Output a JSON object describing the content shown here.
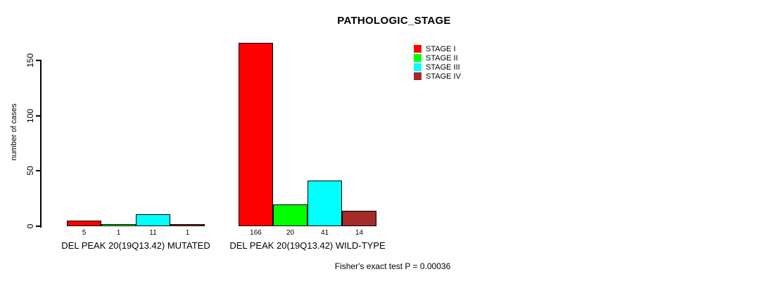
{
  "title": "PATHOLOGIC_STAGE",
  "footer": "Fisher's exact test P = 0.00036",
  "chart_data": {
    "type": "bar",
    "title": "PATHOLOGIC_STAGE",
    "xlabel": "",
    "ylabel": "number of cases",
    "categories": [
      "DEL PEAK 20(19Q13.42) MUTATED",
      "DEL PEAK 20(19Q13.42) WILD-TYPE"
    ],
    "series": [
      {
        "name": "STAGE I",
        "color": "#ff0000",
        "values": [
          5,
          166
        ]
      },
      {
        "name": "STAGE II",
        "color": "#00ff00",
        "values": [
          1,
          20
        ]
      },
      {
        "name": "STAGE III",
        "color": "#00ffff",
        "values": [
          11,
          41
        ]
      },
      {
        "name": "STAGE IV",
        "color": "#a52a2a",
        "values": [
          1,
          14
        ]
      }
    ],
    "bar_value_labels": [
      [
        "5",
        "1",
        "11",
        "1"
      ],
      [
        "166",
        "20",
        "41",
        "14"
      ]
    ],
    "yticks": [
      "0",
      "50",
      "100",
      "150"
    ],
    "ylim": [
      0,
      166
    ],
    "grid": false,
    "legend_position": "top-right",
    "annotation": "Fisher's exact test P = 0.00036",
    "background_color": "#ffffff",
    "axis_color": "#000000"
  }
}
